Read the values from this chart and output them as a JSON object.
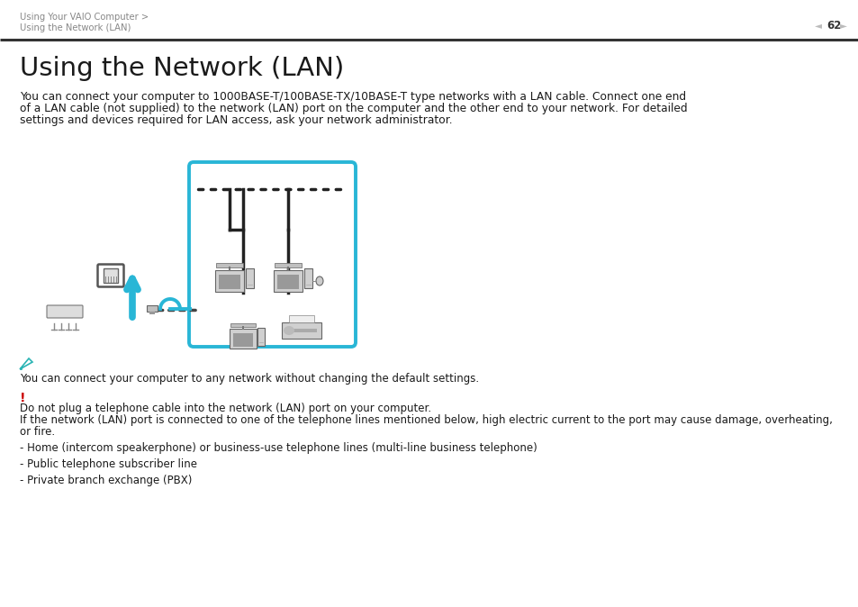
{
  "bg_color": "#ffffff",
  "header_bc1": "Using Your VAIO Computer >",
  "header_bc2": "Using the Network (LAN)",
  "page_number": "62",
  "title": "Using the Network (LAN)",
  "intro_line1": "You can connect your computer to 1000BASE-T/100BASE-TX/10BASE-T type networks with a LAN cable. Connect one end",
  "intro_line2": "of a LAN cable (not supplied) to the network (LAN) port on the computer and the other end to your network. For detailed",
  "intro_line3": "settings and devices required for LAN access, ask your network administrator.",
  "note_text": "You can connect your computer to any network without changing the default settings.",
  "warn_line1": "Do not plug a telephone cable into the network (LAN) port on your computer.",
  "warn_line2": "If the network (LAN) port is connected to one of the telephone lines mentioned below, high electric current to the port may cause damage, overheating,",
  "warn_line3": "or fire.",
  "bullet1": "- Home (intercom speakerphone) or business-use telephone lines (multi-line business telephone)",
  "bullet2": "- Public telephone subscriber line",
  "bullet3": "- Private branch exchange (PBX)",
  "cyan": "#29b6d6",
  "dark": "#1a1a1a",
  "gray_text": "#888888",
  "mid_gray": "#555555",
  "note_color": "#2ab4b4",
  "warn_color": "#cc0000",
  "line_color": "#222222"
}
